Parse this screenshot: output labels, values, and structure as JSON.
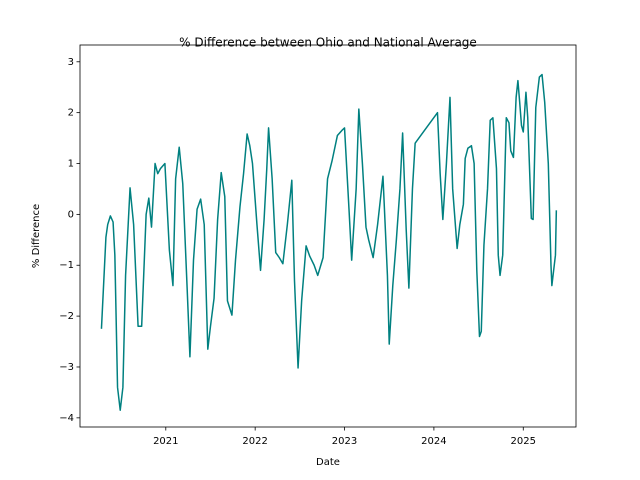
{
  "chart_data": {
    "type": "line",
    "title": "% Difference between Ohio and National Average",
    "x_label": "Date",
    "y_label": "% Difference",
    "x": [
      2020.28,
      2020.33,
      2020.35,
      2020.38,
      2020.41,
      2020.43,
      2020.46,
      2020.49,
      2020.52,
      2020.55,
      2020.6,
      2020.64,
      2020.69,
      2020.73,
      2020.78,
      2020.81,
      2020.84,
      2020.88,
      2020.91,
      2020.94,
      2020.99,
      2021.04,
      2021.08,
      2021.11,
      2021.15,
      2021.19,
      2021.24,
      2021.27,
      2021.31,
      2021.35,
      2021.39,
      2021.43,
      2021.47,
      2021.5,
      2021.54,
      2021.58,
      2021.62,
      2021.66,
      2021.69,
      2021.74,
      2021.78,
      2021.83,
      2021.87,
      2021.91,
      2021.94,
      2021.97,
      2022.02,
      2022.06,
      2022.1,
      2022.13,
      2022.15,
      2022.19,
      2022.23,
      2022.27,
      2022.31,
      2022.36,
      2022.41,
      2022.44,
      2022.48,
      2022.52,
      2022.57,
      2022.61,
      2022.66,
      2022.7,
      2022.76,
      2022.81,
      2022.86,
      2022.92,
      2022.97,
      2023.0,
      2023.05,
      2023.08,
      2023.13,
      2023.16,
      2023.2,
      2023.24,
      2023.27,
      2023.32,
      2023.37,
      2023.43,
      2023.48,
      2023.5,
      2023.54,
      2023.58,
      2023.62,
      2023.65,
      2023.69,
      2023.72,
      2023.76,
      2023.79,
      2024.04,
      2024.07,
      2024.1,
      2024.14,
      2024.18,
      2024.21,
      2024.26,
      2024.29,
      2024.33,
      2024.35,
      2024.38,
      2024.42,
      2024.45,
      2024.48,
      2024.51,
      2024.53,
      2024.56,
      2024.6,
      2024.63,
      2024.66,
      2024.7,
      2024.72,
      2024.74,
      2024.77,
      2024.81,
      2024.84,
      2024.86,
      2024.89,
      2024.92,
      2024.94,
      2024.96,
      2024.98,
      2025.0,
      2025.03,
      2025.05,
      2025.09,
      2025.11,
      2025.14,
      2025.18,
      2025.21,
      2025.24,
      2025.28,
      2025.31,
      2025.32,
      2025.36,
      2025.37
    ],
    "series": [
      {
        "name": "% Difference",
        "color": "#008080",
        "values": [
          -2.25,
          -0.45,
          -0.2,
          -0.03,
          -0.15,
          -0.8,
          -3.4,
          -3.85,
          -3.4,
          -1.2,
          0.52,
          -0.2,
          -2.2,
          -2.2,
          0.0,
          0.32,
          -0.25,
          1.0,
          0.8,
          0.9,
          1.0,
          -0.7,
          -1.4,
          0.7,
          1.32,
          0.6,
          -1.5,
          -2.8,
          -0.9,
          0.1,
          0.3,
          -0.2,
          -2.65,
          -2.2,
          -1.65,
          -0.1,
          0.82,
          0.35,
          -1.7,
          -1.98,
          -0.9,
          0.15,
          0.8,
          1.58,
          1.35,
          1.0,
          -0.2,
          -1.1,
          -0.1,
          0.9,
          1.7,
          0.7,
          -0.75,
          -0.85,
          -0.97,
          -0.2,
          0.67,
          -1.3,
          -3.02,
          -1.7,
          -0.62,
          -0.82,
          -1.0,
          -1.2,
          -0.85,
          0.7,
          1.05,
          1.55,
          1.65,
          1.7,
          0.1,
          -0.9,
          0.5,
          2.07,
          1.0,
          -0.25,
          -0.5,
          -0.85,
          -0.2,
          0.75,
          -1.2,
          -2.55,
          -1.4,
          -0.5,
          0.5,
          1.6,
          -0.3,
          -1.45,
          0.5,
          1.4,
          2.0,
          0.8,
          -0.1,
          1.0,
          2.3,
          0.5,
          -0.67,
          -0.2,
          0.2,
          1.1,
          1.3,
          1.35,
          1.0,
          -1.1,
          -2.4,
          -2.3,
          -0.6,
          0.5,
          1.85,
          1.9,
          0.9,
          -0.8,
          -1.2,
          -0.8,
          1.9,
          1.8,
          1.25,
          1.12,
          2.3,
          2.63,
          2.2,
          1.75,
          1.62,
          2.4,
          1.9,
          -0.08,
          -0.1,
          2.1,
          2.7,
          2.75,
          2.2,
          1.0,
          -1.0,
          -1.4,
          -0.8,
          0.08
        ]
      }
    ],
    "xlim": [
      2020.04,
      2025.59
    ],
    "xticks": [
      2021,
      2022,
      2023,
      2024,
      2025
    ],
    "ylim": [
      -4.18,
      3.33
    ],
    "yticks": [
      {
        "value": -4,
        "label": "−4"
      },
      {
        "value": -3,
        "label": "−3"
      },
      {
        "value": -2,
        "label": "−2"
      },
      {
        "value": -1,
        "label": "−1"
      },
      0,
      1,
      2,
      3
    ],
    "grid": false
  }
}
